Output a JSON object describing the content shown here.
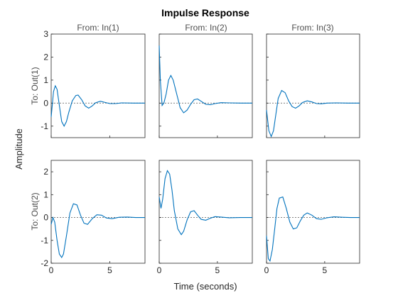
{
  "chart_data": {
    "type": "line",
    "title": "Impulse Response",
    "xlabel": "Time (seconds)",
    "ylabel": "Amplitude",
    "columns": [
      "From: In(1)",
      "From: In(2)",
      "From: In(3)"
    ],
    "rows": [
      {
        "label": "To: Out(1)",
        "ylim": [
          -1.5,
          3
        ],
        "yticks": [
          -1,
          0,
          1,
          2,
          3
        ]
      },
      {
        "label": "To: Out(2)",
        "ylim": [
          -2,
          2.5
        ],
        "yticks": [
          -2,
          -1,
          0,
          1,
          2
        ]
      }
    ],
    "xlim": [
      0,
      8
    ],
    "xticks": [
      0,
      5
    ],
    "series": [
      {
        "row": 0,
        "col": 0,
        "x": [
          0,
          0.2,
          0.35,
          0.5,
          0.7,
          0.9,
          1.1,
          1.3,
          1.5,
          1.8,
          2.1,
          2.3,
          2.6,
          2.9,
          3.2,
          3.5,
          3.8,
          4.2,
          4.6,
          5.0,
          5.5,
          6.0,
          7.0,
          8.0
        ],
        "y": [
          -0.6,
          0.5,
          0.75,
          0.6,
          -0.1,
          -0.8,
          -1.0,
          -0.8,
          -0.4,
          0.1,
          0.33,
          0.35,
          0.15,
          -0.12,
          -0.22,
          -0.12,
          0.02,
          0.08,
          0.03,
          -0.02,
          -0.02,
          0.01,
          0,
          0
        ]
      },
      {
        "row": 0,
        "col": 1,
        "x": [
          0,
          0.1,
          0.25,
          0.4,
          0.6,
          0.8,
          1.0,
          1.2,
          1.5,
          1.8,
          2.1,
          2.4,
          2.7,
          3.0,
          3.3,
          3.6,
          4.0,
          4.4,
          4.8,
          5.3,
          6.0,
          7.0,
          8.0
        ],
        "y": [
          2.5,
          1.0,
          -0.1,
          0.0,
          0.4,
          1.0,
          1.2,
          1.0,
          0.4,
          -0.2,
          -0.42,
          -0.3,
          -0.05,
          0.15,
          0.18,
          0.08,
          -0.05,
          -0.07,
          -0.02,
          0.02,
          0.01,
          0,
          0
        ]
      },
      {
        "row": 0,
        "col": 2,
        "x": [
          0,
          0.2,
          0.4,
          0.6,
          0.8,
          1.0,
          1.3,
          1.6,
          1.9,
          2.2,
          2.5,
          2.8,
          3.1,
          3.5,
          3.9,
          4.3,
          4.7,
          5.2,
          6.0,
          7.0,
          8.0
        ],
        "y": [
          -0.3,
          -1.2,
          -1.45,
          -1.2,
          -0.5,
          0.2,
          0.55,
          0.45,
          0.1,
          -0.15,
          -0.22,
          -0.12,
          0.03,
          0.1,
          0.05,
          -0.02,
          -0.03,
          0,
          0.01,
          0,
          0
        ]
      },
      {
        "row": 1,
        "col": 0,
        "x": [
          0,
          0.15,
          0.3,
          0.5,
          0.7,
          0.9,
          1.05,
          1.3,
          1.6,
          1.9,
          2.2,
          2.5,
          2.8,
          3.1,
          3.5,
          3.9,
          4.3,
          4.7,
          5.2,
          5.8,
          6.5,
          7.2,
          8.0
        ],
        "y": [
          -0.3,
          0.0,
          -0.2,
          -1.0,
          -1.6,
          -1.75,
          -1.6,
          -0.8,
          0.2,
          0.6,
          0.55,
          0.1,
          -0.25,
          -0.3,
          -0.05,
          0.12,
          0.1,
          -0.02,
          -0.05,
          0.01,
          0.02,
          0,
          0
        ]
      },
      {
        "row": 1,
        "col": 1,
        "x": [
          0,
          0.15,
          0.3,
          0.5,
          0.7,
          0.9,
          1.1,
          1.3,
          1.6,
          1.9,
          2.1,
          2.4,
          2.7,
          3.0,
          3.3,
          3.6,
          4.0,
          4.4,
          4.8,
          5.3,
          6.0,
          7.0,
          8.0
        ],
        "y": [
          0.9,
          0.4,
          0.8,
          1.7,
          2.05,
          1.9,
          1.2,
          0.3,
          -0.5,
          -0.75,
          -0.6,
          -0.1,
          0.25,
          0.3,
          0.1,
          -0.08,
          -0.12,
          -0.03,
          0.04,
          0.02,
          -0.01,
          0,
          0
        ]
      },
      {
        "row": 1,
        "col": 2,
        "x": [
          0,
          0.15,
          0.3,
          0.5,
          0.7,
          0.9,
          1.1,
          1.4,
          1.7,
          2.0,
          2.3,
          2.6,
          2.9,
          3.2,
          3.5,
          3.9,
          4.3,
          4.7,
          5.2,
          5.8,
          6.5,
          7.2,
          8.0
        ],
        "y": [
          -0.8,
          -1.8,
          -1.9,
          -1.4,
          -0.5,
          0.4,
          0.85,
          0.9,
          0.4,
          -0.2,
          -0.5,
          -0.45,
          -0.15,
          0.1,
          0.2,
          0.1,
          -0.05,
          -0.08,
          -0.01,
          0.03,
          0.01,
          0,
          0
        ]
      }
    ]
  }
}
